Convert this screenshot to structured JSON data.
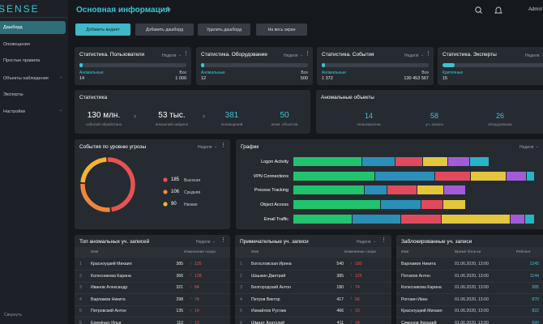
{
  "sidebar": {
    "logo": "SENSE",
    "items": [
      "Дашборд",
      "Оповещения",
      "Простые правила",
      "Объекты наблюдения",
      "Эксперты",
      "Настройки"
    ],
    "collapse": "Свернуть"
  },
  "header": {
    "title": "Основная информация",
    "user": "Admin"
  },
  "toolbar": [
    "Добавить виджет",
    "Добавить дашборд",
    "Удалить дашборд",
    "На весь экран"
  ],
  "stat_cards": [
    {
      "title": "Статистика. Пользователи",
      "period": "Неделя",
      "anomalous": {
        "label": "Аномальные",
        "value": 14
      },
      "total": {
        "label": "Все",
        "value": {
          "value": 1000,
          "label": "1 000"
        }
      }
    },
    {
      "title": "Статистика. Оборудование",
      "period": "Неделя",
      "anomalous": {
        "label": "Аномальные",
        "value": 12
      },
      "total": {
        "label": "Все",
        "value": 500
      }
    },
    {
      "title": "Статистика. События",
      "period": "Неделя",
      "anomalous": {
        "label": "Аномальные",
        "value": {
          "value": 1372,
          "label": "1 372"
        }
      },
      "total": {
        "label": "Все",
        "value": {
          "value": 130453567,
          "label": "130 453 567"
        }
      }
    },
    {
      "title": "Статистика. Эксперты",
      "period": "Неделя",
      "anomalous": {
        "label": "Критичные",
        "value": 15
      }
    }
  ],
  "summary": {
    "title": "Статистика",
    "items": [
      {
        "value": "130 млн.",
        "caption": "событий обработано"
      },
      {
        "value": "53 тыс.",
        "caption": "аномалий найдено"
      },
      {
        "value": "381",
        "caption": "оповещений"
      },
      {
        "value": "50",
        "caption": "аном. объектов"
      }
    ]
  },
  "anomalous_objects": {
    "title": "Аномальные объекты",
    "items": [
      {
        "value": 14,
        "caption": "пользователи"
      },
      {
        "value": 58,
        "caption": "уч. записи"
      },
      {
        "value": 26,
        "caption": "оборудование"
      }
    ]
  },
  "threat_chart": {
    "type": "pie",
    "title": "События по уровню угрозы",
    "period": "Неделя",
    "categories": [
      "Высокая",
      "Средняя",
      "Низкая"
    ],
    "values": [
      185,
      106,
      90
    ],
    "colors": [
      "#e8524f",
      "#f0873a",
      "#f3b532"
    ]
  },
  "activity_chart": {
    "type": "stacked-bar",
    "title": "График",
    "period": "Неделя",
    "categories": [
      "Logon Activity",
      "VPN Connections",
      "Process Tracking",
      "Object Access",
      "Email Traffic"
    ],
    "series": [
      {
        "color": "#1fc46c",
        "values": [
          85,
          101,
          88,
          108,
          73
        ]
      },
      {
        "color": "#2a90b8",
        "values": [
          41,
          74,
          28,
          50,
          60
        ]
      },
      {
        "color": "#e04a5c",
        "values": [
          34,
          44,
          37,
          27,
          50
        ]
      },
      {
        "color": "#e3c63c",
        "values": [
          31,
          44,
          33,
          28,
          85
        ]
      },
      {
        "color": "#a35cd8",
        "values": [
          27,
          25,
          27,
          0,
          18
        ]
      },
      {
        "color": "#27b5c6",
        "values": [
          24,
          10,
          0,
          0,
          12
        ]
      }
    ]
  },
  "tables": [
    {
      "title": "Топ аномальных уч. записей",
      "period": "Неделя",
      "columns": [
        "Имя",
        "Изменение скора"
      ],
      "rows": [
        [
          1,
          "Красноуцкий Михаил",
          385,
          125
        ],
        [
          2,
          "Колесникова Карина",
          366,
          128
        ],
        [
          3,
          "Иванов Александр",
          321,
          84
        ],
        [
          4,
          "Варламов Никита",
          298,
          74
        ],
        [
          5,
          "Петровский Антон",
          135,
          14
        ],
        [
          6,
          "Еремёнко Илья",
          110,
          13
        ]
      ]
    },
    {
      "title": "Примечательные уч. записи",
      "period": "Неделя",
      "columns": [
        "Имя",
        "Изменение скора"
      ],
      "rows": [
        [
          1,
          "Богословская Ирина",
          540,
          180
        ],
        [
          2,
          "Шашкин Дмитрий",
          385,
          125
        ],
        [
          3,
          "Белгородский Антон",
          180,
          74
        ],
        [
          4,
          "Петров Виктор",
          417,
          56
        ],
        [
          5,
          "Измайлов Рустам",
          466,
          15
        ],
        [
          6,
          "Шмидт Анатолий",
          411,
          34
        ]
      ]
    },
    {
      "title": "Заблокированные уч. записи",
      "columns": [
        "Имя",
        "Время блок-ки",
        "Рейтинг"
      ],
      "rows": [
        [
          "Варламов Никита",
          "01.06.2020, 13:00",
          1245
        ],
        [
          "Потапов Антон",
          "01.06.2020, 13:00",
          1144
        ],
        [
          "Колесникова Карина",
          "01.06.2020, 13:00",
          985
        ],
        [
          "Рогозин Иван",
          "01.06.2020, 13:00",
          870
        ],
        [
          "Красноуцкий Михаил",
          "01.06.2020, 13:00",
          822
        ],
        [
          "Симонов Аркадий",
          "01.06.2020, 13:00",
          690
        ]
      ]
    }
  ]
}
